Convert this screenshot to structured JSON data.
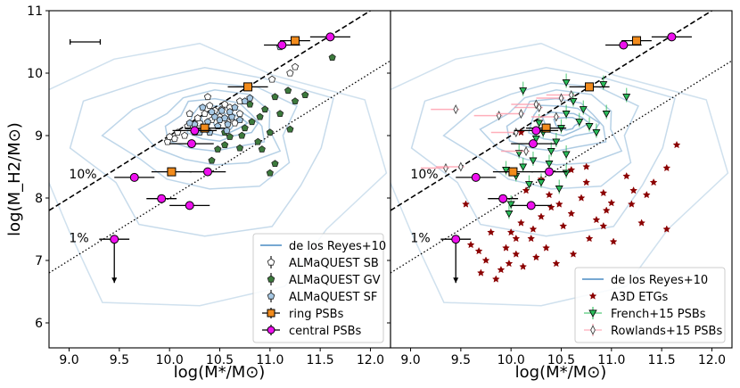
{
  "chart_data": [
    {
      "type": "scatter",
      "panel": "left",
      "xlabel": "log(M*/M⊙)",
      "ylabel": "log(M_H2/M⊙)",
      "xlim": [
        8.8,
        12.2
      ],
      "ylim": [
        5.6,
        11.0
      ],
      "xticks": [
        "9.0",
        "9.5",
        "10.0",
        "10.5",
        "11.0",
        "11.5",
        "12.0"
      ],
      "yticks": [
        "6",
        "7",
        "8",
        "9",
        "10",
        "11"
      ],
      "ref_lines": [
        {
          "name": "10%",
          "style": "dashed",
          "offset": -1
        },
        {
          "name": "1%",
          "style": "dotted",
          "offset": -2
        }
      ],
      "typical_error": {
        "x": 9.16,
        "y": 10.5,
        "xerr": 0.15
      },
      "contour_label": "de los Reyes+10",
      "contour_color": "#8fb8d8",
      "series": [
        {
          "name": "ALMaQUEST SB",
          "color": "#ffffff",
          "marker": "pentagon",
          "points": [
            [
              10.6,
              9.45
            ],
            [
              10.55,
              9.5
            ],
            [
              10.7,
              9.35
            ],
            [
              10.65,
              9.2
            ],
            [
              10.45,
              9.4
            ],
            [
              10.35,
              9.35
            ],
            [
              10.5,
              9.3
            ],
            [
              10.3,
              9.2
            ],
            [
              10.42,
              9.25
            ],
            [
              10.58,
              9.22
            ],
            [
              10.18,
              9.15
            ],
            [
              10.15,
              9.0
            ],
            [
              10.05,
              8.95
            ],
            [
              9.98,
              8.9
            ],
            [
              10.0,
              8.98
            ],
            [
              10.08,
              9.05
            ],
            [
              10.25,
              9.05
            ],
            [
              10.2,
              9.35
            ],
            [
              10.4,
              9.48
            ],
            [
              10.52,
              9.42
            ],
            [
              10.28,
              9.28
            ],
            [
              10.7,
              9.55
            ],
            [
              11.02,
              9.9
            ],
            [
              11.2,
              10.0
            ],
            [
              11.25,
              10.1
            ],
            [
              10.38,
              9.62
            ]
          ]
        },
        {
          "name": "ALMaQUEST GV",
          "color": "#3c7a3c",
          "marker": "pentagon",
          "points": [
            [
              11.62,
              10.25
            ],
            [
              11.18,
              9.72
            ],
            [
              11.05,
              9.62
            ],
            [
              10.95,
              9.42
            ],
            [
              10.9,
              9.3
            ],
            [
              11.1,
              9.35
            ],
            [
              11.25,
              9.55
            ],
            [
              11.35,
              9.65
            ],
            [
              11.2,
              9.1
            ],
            [
              11.0,
              9.05
            ],
            [
              10.82,
              9.22
            ],
            [
              10.75,
              9.12
            ],
            [
              10.72,
              9.0
            ],
            [
              10.6,
              8.98
            ],
            [
              10.55,
              8.85
            ],
            [
              10.48,
              8.78
            ],
            [
              10.42,
              8.6
            ],
            [
              10.88,
              8.9
            ],
            [
              10.92,
              8.78
            ],
            [
              11.05,
              8.55
            ],
            [
              11.0,
              8.4
            ],
            [
              10.55,
              9.05
            ],
            [
              10.7,
              8.8
            ],
            [
              10.8,
              9.5
            ]
          ]
        },
        {
          "name": "ALMaQUEST SF",
          "color": "#a6c8e4",
          "marker": "pentagon",
          "points": [
            [
              10.5,
              9.25
            ],
            [
              10.55,
              9.28
            ],
            [
              10.58,
              9.18
            ],
            [
              10.62,
              9.3
            ],
            [
              10.48,
              9.15
            ],
            [
              10.45,
              9.3
            ],
            [
              10.38,
              9.22
            ],
            [
              10.35,
              9.1
            ],
            [
              10.4,
              9.05
            ],
            [
              10.3,
              9.05
            ],
            [
              10.25,
              9.18
            ],
            [
              10.2,
              9.2
            ],
            [
              10.6,
              9.38
            ],
            [
              10.65,
              9.45
            ],
            [
              10.75,
              9.55
            ],
            [
              10.8,
              9.6
            ],
            [
              10.52,
              9.4
            ],
            [
              11.1,
              10.42
            ],
            [
              10.7,
              9.25
            ],
            [
              10.42,
              9.38
            ],
            [
              10.33,
              9.45
            ],
            [
              10.57,
              9.08
            ]
          ]
        },
        {
          "name": "ring PSBs",
          "color": "#f28b1c",
          "marker": "square",
          "points": [
            [
              11.25,
              10.52,
              0.15,
              0.06
            ],
            [
              10.78,
              9.78,
              0.2,
              0.05
            ],
            [
              10.35,
              9.12,
              0.2,
              0.05
            ],
            [
              10.02,
              8.42,
              0.2,
              0.05
            ]
          ]
        },
        {
          "name": "central PSBs",
          "color": "#ee10ee",
          "marker": "circle",
          "points": [
            [
              11.6,
              10.58,
              0.2,
              0.0
            ],
            [
              11.12,
              10.45,
              0.18,
              0.0
            ],
            [
              10.25,
              9.08,
              0.22,
              0.0
            ],
            [
              10.22,
              8.87,
              0.22,
              0.0
            ],
            [
              9.65,
              8.33,
              0.2,
              0.0
            ],
            [
              10.38,
              8.42,
              0.18,
              0.0
            ],
            [
              9.92,
              7.99,
              0.15,
              0.0
            ],
            [
              10.2,
              7.88,
              0.2,
              0.0
            ]
          ]
        },
        {
          "name": "central PSBs (upper limit)",
          "color": "#ee10ee",
          "marker": "circle",
          "upper_limit": true,
          "legend": false,
          "points": [
            [
              9.45,
              7.34,
              0.15,
              0.0
            ]
          ]
        }
      ],
      "legend": {
        "loc": "lower right",
        "entries": [
          "de los Reyes+10",
          "ALMaQUEST SB",
          "ALMaQUEST GV",
          "ALMaQUEST SF",
          "ring PSBs",
          "central PSBs"
        ]
      }
    },
    {
      "type": "scatter",
      "panel": "right",
      "xlabel": "log(M*/M⊙)",
      "ylabel": "",
      "xlim": [
        8.8,
        12.2
      ],
      "ylim": [
        5.6,
        11.0
      ],
      "xticks": [
        "9.0",
        "9.5",
        "10.0",
        "10.5",
        "11.0",
        "11.5",
        "12.0"
      ],
      "yticks": [
        "6",
        "7",
        "8",
        "9",
        "10",
        "11"
      ],
      "ref_lines": [
        {
          "name": "10%",
          "style": "dashed",
          "offset": -1
        },
        {
          "name": "1%",
          "style": "dotted",
          "offset": -2
        }
      ],
      "contour_label": "de los Reyes+10",
      "contour_color": "#8fb8d8",
      "series": [
        {
          "name": "A3D ETGs",
          "color": "#8b0000",
          "marker": "star",
          "points": [
            [
              11.55,
              8.48
            ],
            [
              11.22,
              8.12
            ],
            [
              11.15,
              8.35
            ],
            [
              11.35,
              8.05
            ],
            [
              11.42,
              8.25
            ],
            [
              11.0,
              7.92
            ],
            [
              10.92,
              8.08
            ],
            [
              10.95,
              7.8
            ],
            [
              11.2,
              7.9
            ],
            [
              11.55,
              7.5
            ],
            [
              11.3,
              7.6
            ],
            [
              10.75,
              8.25
            ],
            [
              10.7,
              8.0
            ],
            [
              10.6,
              7.75
            ],
            [
              10.48,
              7.9
            ],
            [
              10.4,
              7.85
            ],
            [
              10.52,
              7.55
            ],
            [
              10.3,
              7.7
            ],
            [
              10.22,
              7.5
            ],
            [
              10.35,
              7.2
            ],
            [
              10.45,
              6.95
            ],
            [
              10.2,
              7.35
            ],
            [
              10.1,
              7.6
            ],
            [
              10.0,
              7.45
            ],
            [
              9.95,
              7.2
            ],
            [
              10.05,
              7.1
            ],
            [
              9.98,
              6.95
            ],
            [
              9.9,
              6.85
            ],
            [
              10.12,
              6.9
            ],
            [
              10.25,
              7.05
            ],
            [
              10.62,
              7.1
            ],
            [
              10.78,
              7.35
            ],
            [
              10.92,
              7.55
            ],
            [
              11.02,
              7.3
            ],
            [
              9.8,
              7.45
            ],
            [
              9.68,
              7.15
            ],
            [
              9.75,
              7.0
            ],
            [
              9.7,
              6.8
            ],
            [
              9.85,
              6.7
            ],
            [
              9.6,
              7.25
            ],
            [
              10.15,
              8.12
            ],
            [
              10.3,
              8.3
            ],
            [
              10.38,
              8.05
            ],
            [
              9.55,
              7.9
            ],
            [
              10.1,
              9.05
            ],
            [
              10.75,
              8.5
            ],
            [
              11.65,
              8.85
            ],
            [
              10.6,
              8.45
            ],
            [
              10.85,
              7.65
            ],
            [
              10.05,
              7.35
            ]
          ]
        },
        {
          "name": "French+15 PSBs",
          "color": "#2bbd5a",
          "marker": "triangle",
          "points": [
            [
              11.15,
              9.62
            ],
            [
              10.92,
              9.82
            ],
            [
              10.62,
              9.55
            ],
            [
              10.72,
              9.42
            ],
            [
              10.55,
              9.35
            ],
            [
              10.68,
              9.22
            ],
            [
              10.78,
              9.15
            ],
            [
              10.95,
              9.35
            ],
            [
              10.5,
              9.12
            ],
            [
              10.25,
              8.95
            ],
            [
              10.28,
              9.2
            ],
            [
              10.32,
              9.05
            ],
            [
              10.45,
              8.9
            ],
            [
              10.55,
              8.7
            ],
            [
              10.08,
              8.72
            ],
            [
              10.12,
              8.5
            ],
            [
              9.95,
              8.45
            ],
            [
              10.05,
              8.35
            ],
            [
              10.18,
              8.22
            ],
            [
              10.3,
              8.25
            ],
            [
              10.48,
              8.15
            ],
            [
              10.55,
              8.4
            ],
            [
              10.38,
              8.55
            ],
            [
              9.98,
              7.75
            ],
            [
              10.0,
              7.9
            ],
            [
              10.85,
              9.05
            ],
            [
              10.4,
              8.75
            ],
            [
              10.22,
              8.6
            ],
            [
              10.12,
              9.72
            ],
            [
              10.55,
              9.85
            ]
          ]
        },
        {
          "name": "Rowlands+15 PSBs",
          "color": "#ff9aaa",
          "marker": "thin_diamond",
          "points": [
            [
              9.45,
              9.42
            ],
            [
              9.88,
              9.32
            ],
            [
              10.1,
              9.35
            ],
            [
              10.28,
              9.45
            ],
            [
              10.45,
              9.3
            ],
            [
              10.6,
              9.65
            ],
            [
              10.05,
              9.05
            ],
            [
              10.15,
              8.75
            ],
            [
              9.35,
              8.48
            ],
            [
              9.5,
              8.5
            ],
            [
              10.25,
              9.5
            ],
            [
              10.5,
              9.6
            ]
          ]
        },
        {
          "name": "ring PSBs",
          "color": "#f28b1c",
          "marker": "square",
          "legend": false,
          "points": [
            [
              11.25,
              10.52,
              0.15,
              0.06
            ],
            [
              10.78,
              9.78,
              0.2,
              0.05
            ],
            [
              10.35,
              9.12,
              0.2,
              0.05
            ],
            [
              10.02,
              8.42,
              0.2,
              0.05
            ]
          ]
        },
        {
          "name": "central PSBs",
          "color": "#ee10ee",
          "marker": "circle",
          "legend": false,
          "points": [
            [
              11.6,
              10.58,
              0.2,
              0.0
            ],
            [
              11.12,
              10.45,
              0.18,
              0.0
            ],
            [
              10.25,
              9.08,
              0.22,
              0.0
            ],
            [
              10.22,
              8.87,
              0.22,
              0.0
            ],
            [
              9.65,
              8.33,
              0.2,
              0.0
            ],
            [
              10.38,
              8.42,
              0.18,
              0.0
            ],
            [
              9.92,
              7.99,
              0.15,
              0.0
            ],
            [
              10.2,
              7.88,
              0.2,
              0.0
            ]
          ]
        },
        {
          "name": "central PSBs (upper limit)",
          "color": "#ee10ee",
          "marker": "circle",
          "upper_limit": true,
          "legend": false,
          "points": [
            [
              9.45,
              7.34,
              0.15,
              0.0
            ]
          ]
        }
      ],
      "legend": {
        "loc": "lower right",
        "entries": [
          "de los Reyes+10",
          "A3D ETGs",
          "French+15 PSBs",
          "Rowlands+15 PSBs"
        ]
      }
    }
  ]
}
